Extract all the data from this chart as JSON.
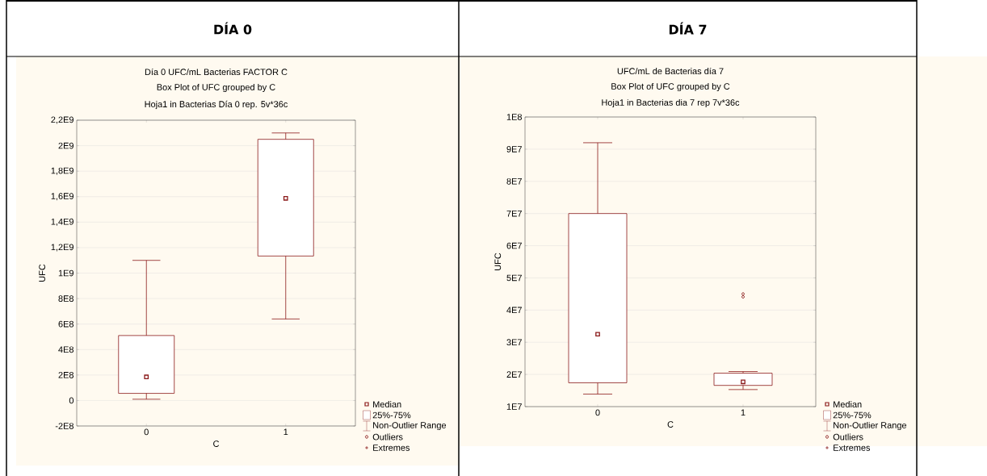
{
  "chart_data": [
    {
      "type": "box",
      "title": "DÍA 0",
      "subtitle": "Día 0 UFC/mL  Bacterias FACTOR C",
      "annotations": [
        "Box Plot of UFC grouped by  C",
        "Hoja1 in Bacterias Día 0 rep. 5v*36c",
        "Median",
        "25%-75%",
        "Non-Outlier Range",
        "Outliers",
        "Extremes"
      ],
      "xlabel": "C",
      "ylabel": "UFC",
      "categories": [
        "0",
        "1"
      ],
      "color": "#8b1a1a",
      "boxes": [
        {
          "low": 10000000.0,
          "q1": 56000000.0,
          "median": 185000000.0,
          "q3": 510000000.0,
          "high": 1100000000.0
        },
        {
          "low": 640000000.0,
          "q1": 1134000000.0,
          "median": 1587000000.0,
          "q3": 2050000000.0,
          "high": 2100000000.0
        }
      ],
      "ylim": [
        -200000000.0,
        2200000000.0
      ],
      "yticks": [
        {
          "value": -200000000.0,
          "label": "-2E8"
        },
        0,
        {
          "value": 200000000.0,
          "label": "2E8"
        },
        {
          "value": 400000000.0,
          "label": "4E8"
        },
        {
          "value": 600000000.0,
          "label": "6E8"
        },
        {
          "value": 800000000.0,
          "label": "8E8"
        },
        {
          "value": 1000000000.0,
          "label": "1E9"
        },
        {
          "value": 1200000000.0,
          "label": "1,2E9"
        },
        {
          "value": 1400000000.0,
          "label": "1,4E9"
        },
        {
          "value": 1600000000.0,
          "label": "1,6E9"
        },
        {
          "value": 1800000000.0,
          "label": "1,8E9"
        },
        {
          "value": 2000000000.0,
          "label": "2E9"
        },
        {
          "value": 2200000000.0,
          "label": "2,2E9"
        }
      ],
      "grid": "y",
      "marker": "square"
    },
    {
      "type": "box",
      "title": "DÍA 7",
      "subtitle": "UFC/mL de Bacterias día 7",
      "annotations": [
        "Box Plot of UFC grouped by  C",
        "Hoja1 in Bacterias dia 7 rep 7v*36c",
        "Median",
        "25%-75%",
        "Non-Outlier Range",
        "Outliers",
        "Extremes"
      ],
      "xlabel": "C",
      "ylabel": "UFC",
      "categories": [
        "0",
        "1"
      ],
      "color": "#8b1a1a",
      "boxes": [
        {
          "low": 13900000.0,
          "q1": 17400000.0,
          "median": 32500000.0,
          "q3": 70000000.0,
          "high": 92000000.0
        },
        {
          "low": 15300000.0,
          "q1": 16600000.0,
          "median": 17700000.0,
          "q3": 20400000.0,
          "high": 20900000.0,
          "outliers": [
            44100000.0,
            45000000.0
          ]
        }
      ],
      "ylim": [
        10000000.0,
        100000000.0
      ],
      "yticks": [
        {
          "value": 10000000.0,
          "label": "1E7"
        },
        {
          "value": 20000000.0,
          "label": "2E7"
        },
        {
          "value": 30000000.0,
          "label": "3E7"
        },
        {
          "value": 40000000.0,
          "label": "4E7"
        },
        {
          "value": 50000000.0,
          "label": "5E7"
        },
        {
          "value": 60000000.0,
          "label": "6E7"
        },
        {
          "value": 70000000.0,
          "label": "7E7"
        },
        {
          "value": 80000000.0,
          "label": "8E7"
        },
        {
          "value": 90000000.0,
          "label": "9E7"
        },
        {
          "value": 100000000.0,
          "label": "1E8"
        }
      ],
      "grid": "y",
      "marker": "square"
    }
  ]
}
